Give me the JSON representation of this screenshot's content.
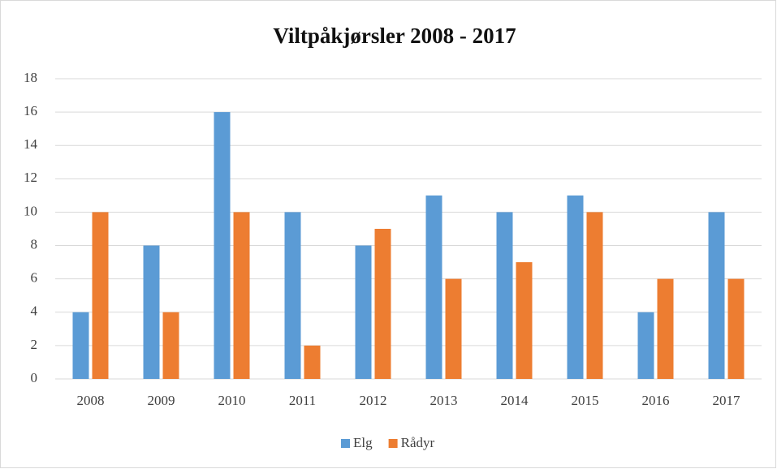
{
  "chart_data": {
    "type": "bar",
    "title": "Viltpåkjørsler 2008 - 2017",
    "categories": [
      "2008",
      "2009",
      "2010",
      "2011",
      "2012",
      "2013",
      "2014",
      "2015",
      "2016",
      "2017"
    ],
    "series": [
      {
        "name": "Elg",
        "color": "#5b9bd5",
        "values": [
          4,
          8,
          16,
          10,
          8,
          11,
          10,
          11,
          4,
          10
        ]
      },
      {
        "name": "Rådyr",
        "color": "#ed7d31",
        "values": [
          10,
          4,
          10,
          2,
          9,
          6,
          7,
          10,
          6,
          6
        ]
      }
    ],
    "ylim": [
      0,
      18
    ],
    "yticks": [
      0,
      2,
      4,
      6,
      8,
      10,
      12,
      14,
      16,
      18
    ],
    "grid": true,
    "legend": "bottom"
  }
}
